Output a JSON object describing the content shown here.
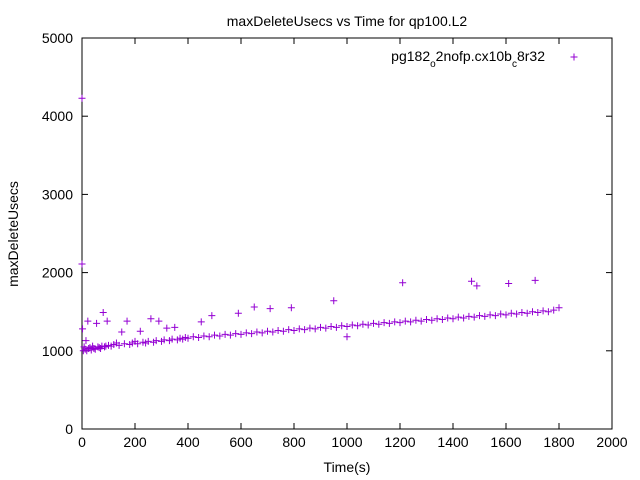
{
  "chart_data": {
    "type": "scatter",
    "title": "maxDeleteUsecs vs Time for qp100.L2",
    "xlabel": "Time(s)",
    "ylabel": "maxDeleteUsecs",
    "xlim": [
      0,
      2000
    ],
    "ylim": [
      0,
      5000
    ],
    "xticks": [
      0,
      200,
      400,
      600,
      800,
      1000,
      1200,
      1400,
      1600,
      1800,
      2000
    ],
    "yticks": [
      0,
      1000,
      2000,
      3000,
      4000,
      5000
    ],
    "grid": false,
    "legend_position": "top-right",
    "series": [
      {
        "name_parts": [
          "pg182",
          "o",
          "2nofp.cx10b",
          "c",
          "8r32"
        ],
        "color": "#9400d3",
        "marker": "plus",
        "points": [
          [
            0,
            4230
          ],
          [
            0,
            2110
          ],
          [
            2,
            1280
          ],
          [
            5,
            1000
          ],
          [
            8,
            1050
          ],
          [
            12,
            1020
          ],
          [
            15,
            1130
          ],
          [
            18,
            1000
          ],
          [
            22,
            1380
          ],
          [
            25,
            1030
          ],
          [
            30,
            1040
          ],
          [
            35,
            1010
          ],
          [
            40,
            1060
          ],
          [
            45,
            1030
          ],
          [
            50,
            1020
          ],
          [
            55,
            1350
          ],
          [
            60,
            1050
          ],
          [
            65,
            1040
          ],
          [
            70,
            1030
          ],
          [
            75,
            1060
          ],
          [
            80,
            1490
          ],
          [
            85,
            1050
          ],
          [
            90,
            1060
          ],
          [
            95,
            1380
          ],
          [
            100,
            1070
          ],
          [
            110,
            1060
          ],
          [
            120,
            1080
          ],
          [
            130,
            1100
          ],
          [
            140,
            1070
          ],
          [
            150,
            1240
          ],
          [
            160,
            1090
          ],
          [
            170,
            1380
          ],
          [
            180,
            1080
          ],
          [
            190,
            1100
          ],
          [
            200,
            1120
          ],
          [
            210,
            1090
          ],
          [
            220,
            1250
          ],
          [
            230,
            1110
          ],
          [
            240,
            1100
          ],
          [
            250,
            1120
          ],
          [
            260,
            1410
          ],
          [
            270,
            1110
          ],
          [
            280,
            1130
          ],
          [
            290,
            1380
          ],
          [
            300,
            1120
          ],
          [
            310,
            1140
          ],
          [
            320,
            1290
          ],
          [
            330,
            1130
          ],
          [
            340,
            1150
          ],
          [
            350,
            1300
          ],
          [
            360,
            1140
          ],
          [
            370,
            1160
          ],
          [
            380,
            1150
          ],
          [
            390,
            1170
          ],
          [
            400,
            1160
          ],
          [
            420,
            1180
          ],
          [
            440,
            1170
          ],
          [
            450,
            1370
          ],
          [
            460,
            1190
          ],
          [
            480,
            1180
          ],
          [
            490,
            1450
          ],
          [
            500,
            1200
          ],
          [
            520,
            1190
          ],
          [
            540,
            1210
          ],
          [
            560,
            1200
          ],
          [
            580,
            1220
          ],
          [
            590,
            1480
          ],
          [
            600,
            1210
          ],
          [
            620,
            1230
          ],
          [
            640,
            1220
          ],
          [
            650,
            1560
          ],
          [
            660,
            1240
          ],
          [
            680,
            1230
          ],
          [
            700,
            1250
          ],
          [
            710,
            1540
          ],
          [
            720,
            1240
          ],
          [
            740,
            1260
          ],
          [
            760,
            1250
          ],
          [
            780,
            1270
          ],
          [
            790,
            1550
          ],
          [
            800,
            1260
          ],
          [
            820,
            1280
          ],
          [
            840,
            1270
          ],
          [
            860,
            1290
          ],
          [
            880,
            1280
          ],
          [
            900,
            1300
          ],
          [
            920,
            1290
          ],
          [
            940,
            1310
          ],
          [
            950,
            1640
          ],
          [
            960,
            1300
          ],
          [
            980,
            1320
          ],
          [
            1000,
            1310
          ],
          [
            1000,
            1180
          ],
          [
            1020,
            1330
          ],
          [
            1040,
            1320
          ],
          [
            1060,
            1340
          ],
          [
            1080,
            1330
          ],
          [
            1100,
            1350
          ],
          [
            1120,
            1340
          ],
          [
            1140,
            1360
          ],
          [
            1160,
            1350
          ],
          [
            1180,
            1370
          ],
          [
            1200,
            1360
          ],
          [
            1210,
            1870
          ],
          [
            1220,
            1380
          ],
          [
            1240,
            1370
          ],
          [
            1260,
            1390
          ],
          [
            1280,
            1380
          ],
          [
            1300,
            1400
          ],
          [
            1320,
            1390
          ],
          [
            1340,
            1410
          ],
          [
            1360,
            1400
          ],
          [
            1380,
            1420
          ],
          [
            1400,
            1410
          ],
          [
            1420,
            1430
          ],
          [
            1440,
            1420
          ],
          [
            1460,
            1440
          ],
          [
            1470,
            1890
          ],
          [
            1480,
            1430
          ],
          [
            1490,
            1830
          ],
          [
            1500,
            1450
          ],
          [
            1520,
            1440
          ],
          [
            1540,
            1460
          ],
          [
            1560,
            1450
          ],
          [
            1580,
            1470
          ],
          [
            1600,
            1460
          ],
          [
            1610,
            1860
          ],
          [
            1620,
            1480
          ],
          [
            1640,
            1470
          ],
          [
            1660,
            1490
          ],
          [
            1680,
            1480
          ],
          [
            1700,
            1500
          ],
          [
            1710,
            1900
          ],
          [
            1720,
            1490
          ],
          [
            1740,
            1510
          ],
          [
            1760,
            1500
          ],
          [
            1780,
            1520
          ],
          [
            1800,
            1550
          ]
        ]
      }
    ]
  }
}
